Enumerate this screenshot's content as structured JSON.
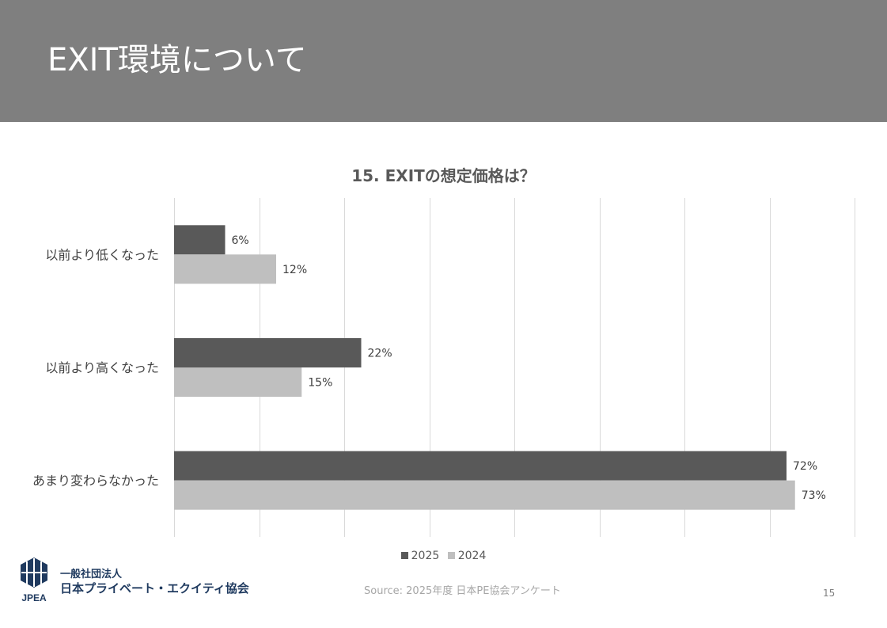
{
  "slide": {
    "title": "EXIT環境について",
    "page_number": "15",
    "source": "Source: 2025年度 日本PE協会アンケート"
  },
  "organization": {
    "logo_text": "JPEA",
    "line1": "一般社団法人",
    "line2": "日本プライベート・エクイティ協会"
  },
  "colors": {
    "header_bg": "#7f7f7f",
    "series_2025": "#595959",
    "series_2024": "#bfbfbf",
    "logo_blue": "#1f3a5f"
  },
  "chart_data": {
    "type": "bar",
    "orientation": "horizontal",
    "title": "15. EXITの想定価格は？",
    "categories": [
      "以前より低くなった",
      "以前より高くなった",
      "あまり変わらなかった"
    ],
    "series": [
      {
        "name": "2025",
        "values": [
          6,
          22,
          72
        ],
        "labels": [
          "6%",
          "22%",
          "72%"
        ],
        "color": "#595959"
      },
      {
        "name": "2024",
        "values": [
          12,
          15,
          73
        ],
        "labels": [
          "12%",
          "15%",
          "73%"
        ],
        "color": "#bfbfbf"
      }
    ],
    "xlim": [
      0,
      80
    ],
    "xtick_step": 10,
    "grid": true,
    "legend": "bottom",
    "unit": "%"
  }
}
